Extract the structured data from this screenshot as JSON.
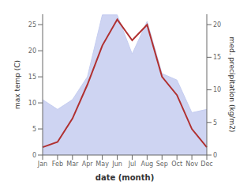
{
  "chart_data": {
    "type": "line",
    "xlabel": "date (month)",
    "ylabel": "max temp (C)",
    "y2label": "med. precipitation (kg/m2)",
    "categories": [
      "Jan",
      "Feb",
      "Mar",
      "Apr",
      "May",
      "Jun",
      "Jul",
      "Aug",
      "Sep",
      "Oct",
      "Nov",
      "Dec"
    ],
    "series": [
      {
        "type": "area",
        "axis": "y2",
        "color": "#c5cdf0",
        "values": [
          8.5,
          7.0,
          8.5,
          12.0,
          21.5,
          21.5,
          15.5,
          20.5,
          12.5,
          11.5,
          6.5,
          7.0
        ]
      },
      {
        "type": "line",
        "axis": "y",
        "color": "#b03030",
        "values": [
          1.5,
          2.5,
          7.0,
          13.5,
          21.0,
          26.0,
          22.0,
          25.0,
          15.0,
          11.5,
          5.0,
          1.5
        ]
      }
    ],
    "ylim": [
      0,
      27
    ],
    "yticks": [
      0,
      5,
      10,
      15,
      20,
      25
    ],
    "y2lim": [
      0,
      21.6
    ],
    "y2ticks": [
      0,
      5,
      10,
      15,
      20
    ],
    "grid": false
  }
}
